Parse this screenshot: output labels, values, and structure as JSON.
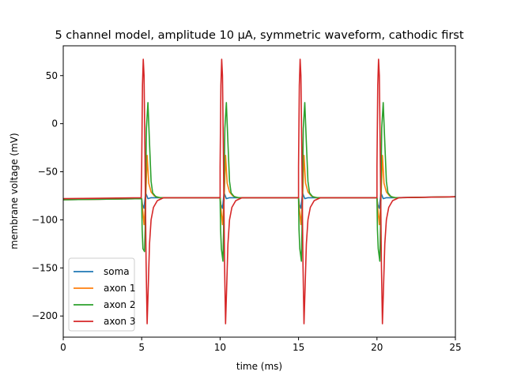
{
  "chart_data": {
    "type": "line",
    "title": "5 channel model, amplitude 10 µA, symmetric waveform, cathodic first",
    "xlabel": "time (ms)",
    "ylabel": "membrane voltage (mV)",
    "xlim": [
      0,
      25
    ],
    "ylim": [
      -222,
      81
    ],
    "xticks": [
      0,
      5,
      10,
      15,
      20,
      25
    ],
    "yticks": [
      50,
      0,
      -50,
      -100,
      -150,
      -200
    ],
    "grid": false,
    "legend_position": "lower-left",
    "pulse_times": [
      5,
      10,
      15,
      20
    ],
    "series": [
      {
        "name": "soma",
        "color": "#1f77b4",
        "x": [
          0,
          5,
          5.05,
          5.15,
          5.25,
          5.4,
          5.6,
          6,
          10,
          10.05,
          10.15,
          10.25,
          10.4,
          10.6,
          11,
          15,
          15.05,
          15.15,
          15.25,
          15.4,
          15.6,
          16,
          20,
          20.05,
          20.15,
          20.25,
          20.4,
          20.6,
          21,
          25
        ],
        "y": [
          -79,
          -78,
          -84,
          -88,
          -72,
          -78,
          -77,
          -77,
          -77,
          -84,
          -88,
          -72,
          -78,
          -77,
          -77,
          -77,
          -84,
          -88,
          -72,
          -78,
          -77,
          -77,
          -77,
          -84,
          -88,
          -72,
          -78,
          -77,
          -77,
          -76
        ]
      },
      {
        "name": "axon 1",
        "color": "#ff7f0e",
        "x": [
          0,
          5,
          5.05,
          5.15,
          5.25,
          5.35,
          5.45,
          5.6,
          5.8,
          6.1,
          10,
          10.05,
          10.15,
          10.25,
          10.35,
          10.45,
          10.6,
          10.8,
          11.1,
          15,
          15.05,
          15.15,
          15.25,
          15.35,
          15.45,
          15.6,
          15.8,
          16.1,
          20,
          20.05,
          20.15,
          20.25,
          20.35,
          20.45,
          20.6,
          20.8,
          21.1,
          25
        ],
        "y": [
          -79,
          -78,
          -88,
          -105,
          -80,
          -33,
          -62,
          -71,
          -75,
          -77,
          -77,
          -88,
          -105,
          -80,
          -33,
          -62,
          -71,
          -75,
          -77,
          -77,
          -88,
          -105,
          -80,
          -33,
          -62,
          -71,
          -75,
          -77,
          -77,
          -88,
          -105,
          -80,
          -33,
          -62,
          -71,
          -75,
          -77,
          -76
        ]
      },
      {
        "name": "axon 2",
        "color": "#2ca02c",
        "x": [
          0,
          5,
          5.03,
          5.08,
          5.18,
          5.22,
          5.3,
          5.4,
          5.5,
          5.6,
          5.7,
          5.9,
          6.2,
          10,
          10.03,
          10.08,
          10.18,
          10.22,
          10.3,
          10.4,
          10.5,
          10.6,
          10.7,
          10.9,
          11.2,
          15,
          15.03,
          15.08,
          15.18,
          15.22,
          15.3,
          15.4,
          15.5,
          15.6,
          15.7,
          15.9,
          16.2,
          20,
          20.03,
          20.08,
          20.18,
          20.22,
          20.3,
          20.4,
          20.5,
          20.6,
          20.7,
          20.9,
          21.2,
          25
        ],
        "y": [
          -79,
          -78,
          -110,
          -130,
          -133,
          -110,
          -5,
          22,
          -20,
          -60,
          -72,
          -76,
          -77,
          -77,
          -110,
          -130,
          -143,
          -110,
          -5,
          22,
          -20,
          -60,
          -72,
          -76,
          -77,
          -77,
          -110,
          -130,
          -143,
          -110,
          -5,
          22,
          -20,
          -60,
          -72,
          -76,
          -77,
          -77,
          -110,
          -130,
          -143,
          -110,
          -5,
          22,
          -20,
          -60,
          -72,
          -76,
          -77,
          -76
        ]
      },
      {
        "name": "axon 3",
        "color": "#d62728",
        "x": [
          0,
          4.97,
          5.0,
          5.05,
          5.1,
          5.15,
          5.2,
          5.28,
          5.35,
          5.42,
          5.5,
          5.6,
          5.75,
          6.0,
          6.4,
          10,
          10.0,
          10.05,
          10.1,
          10.15,
          10.2,
          10.28,
          10.35,
          10.42,
          10.5,
          10.6,
          10.75,
          11.0,
          11.4,
          15,
          15.0,
          15.05,
          15.1,
          15.15,
          15.2,
          15.28,
          15.35,
          15.42,
          15.5,
          15.6,
          15.75,
          16.0,
          16.4,
          20,
          20.0,
          20.05,
          20.1,
          20.15,
          20.2,
          20.28,
          20.35,
          20.42,
          20.5,
          20.6,
          20.75,
          21.0,
          21.4,
          25
        ],
        "y": [
          -78,
          -77,
          -45,
          40,
          67,
          50,
          -20,
          -145,
          -208,
          -170,
          -125,
          -100,
          -87,
          -80,
          -77,
          -77,
          -45,
          40,
          67,
          50,
          -20,
          -145,
          -208,
          -170,
          -125,
          -100,
          -87,
          -80,
          -77,
          -77,
          -45,
          40,
          67,
          50,
          -20,
          -145,
          -208,
          -170,
          -125,
          -100,
          -87,
          -80,
          -77,
          -77,
          -45,
          40,
          67,
          50,
          -20,
          -145,
          -208,
          -170,
          -125,
          -100,
          -87,
          -80,
          -77,
          -76
        ]
      }
    ]
  }
}
